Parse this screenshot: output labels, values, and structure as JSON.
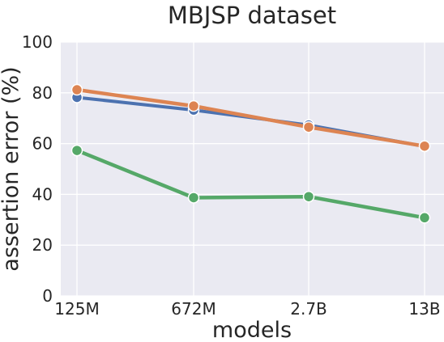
{
  "chart_data": {
    "type": "line",
    "title": "MBJSP dataset",
    "xlabel": "models",
    "ylabel": "assertion error (%)",
    "categories": [
      "125M",
      "672M",
      "2.7B",
      "13B"
    ],
    "ylim": [
      0,
      100
    ],
    "yticks": [
      0,
      20,
      40,
      60,
      80,
      100
    ],
    "grid": true,
    "series": [
      {
        "color": "#4c72b0",
        "values": [
          78.2,
          73.2,
          67.3,
          58.9
        ]
      },
      {
        "color": "#dd8452",
        "values": [
          81.2,
          74.8,
          66.5,
          59.0
        ]
      },
      {
        "color": "#55a868",
        "values": [
          57.3,
          38.7,
          39.1,
          30.8
        ]
      }
    ]
  }
}
